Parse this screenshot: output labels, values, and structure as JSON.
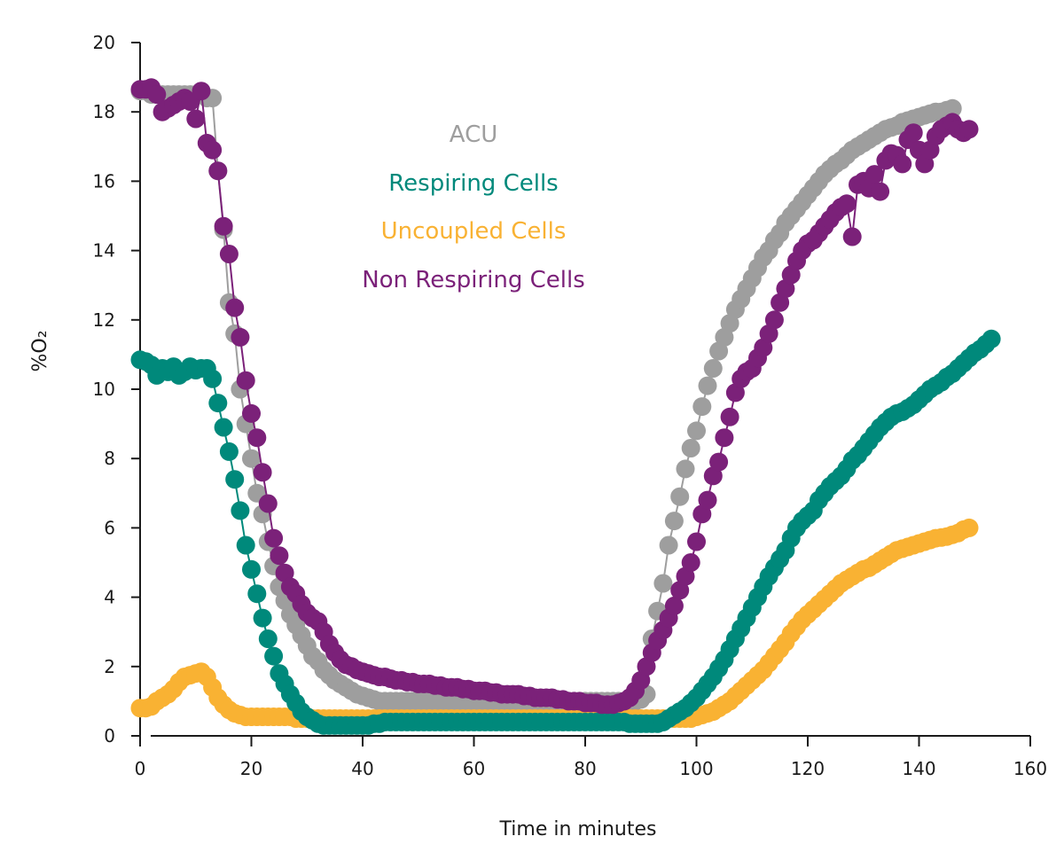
{
  "chart_data": {
    "type": "line",
    "xlabel": "Time in minutes",
    "ylabel": "%O₂",
    "xlim": [
      0,
      160
    ],
    "ylim": [
      0,
      20
    ],
    "xticks": [
      0,
      20,
      40,
      60,
      80,
      100,
      120,
      140,
      160
    ],
    "yticks": [
      0,
      2,
      4,
      6,
      8,
      10,
      12,
      14,
      16,
      18,
      20
    ],
    "grid": false,
    "legend_position": "top-center",
    "x_step": 1,
    "series": [
      {
        "name": "ACU",
        "color": "#9e9e9e",
        "values": [
          18.6,
          18.6,
          18.5,
          18.5,
          18.5,
          18.5,
          18.5,
          18.5,
          18.5,
          18.5,
          18.5,
          18.5,
          18.4,
          18.4,
          16.3,
          14.6,
          12.5,
          11.6,
          10.0,
          9.0,
          8.0,
          7.0,
          6.4,
          5.6,
          4.9,
          4.3,
          3.9,
          3.5,
          3.2,
          2.9,
          2.6,
          2.3,
          2.15,
          1.9,
          1.75,
          1.6,
          1.5,
          1.4,
          1.3,
          1.2,
          1.15,
          1.1,
          1.05,
          1.0,
          1.0,
          1.0,
          1.0,
          1.0,
          1.0,
          1.0,
          1.0,
          1.0,
          1.0,
          1.0,
          1.0,
          1.0,
          1.0,
          1.0,
          1.0,
          1.0,
          1.0,
          1.0,
          1.0,
          1.0,
          1.0,
          1.0,
          1.0,
          1.0,
          1.0,
          1.0,
          1.0,
          1.0,
          1.0,
          1.0,
          1.0,
          1.0,
          1.0,
          1.0,
          1.0,
          1.0,
          1.0,
          1.0,
          1.0,
          1.0,
          1.0,
          1.0,
          1.0,
          1.0,
          1.0,
          1.0,
          1.05,
          1.2,
          2.8,
          3.6,
          4.4,
          5.5,
          6.2,
          6.9,
          7.7,
          8.3,
          8.8,
          9.5,
          10.1,
          10.6,
          11.1,
          11.5,
          11.9,
          12.3,
          12.6,
          12.9,
          13.2,
          13.5,
          13.8,
          14.0,
          14.3,
          14.5,
          14.8,
          15.0,
          15.2,
          15.4,
          15.6,
          15.8,
          16.0,
          16.2,
          16.35,
          16.5,
          16.6,
          16.75,
          16.9,
          17.0,
          17.1,
          17.2,
          17.3,
          17.4,
          17.5,
          17.55,
          17.6,
          17.7,
          17.75,
          17.8,
          17.85,
          17.9,
          17.95,
          18.0,
          18.0,
          18.05,
          18.1
        ]
      },
      {
        "name": "Respiring Cells",
        "color": "#00897b",
        "values": [
          10.85,
          10.8,
          10.7,
          10.4,
          10.6,
          10.5,
          10.65,
          10.4,
          10.5,
          10.65,
          10.55,
          10.6,
          10.6,
          10.3,
          9.6,
          8.9,
          8.2,
          7.4,
          6.5,
          5.5,
          4.8,
          4.1,
          3.4,
          2.8,
          2.3,
          1.8,
          1.5,
          1.2,
          0.95,
          0.7,
          0.55,
          0.45,
          0.35,
          0.3,
          0.3,
          0.3,
          0.3,
          0.3,
          0.3,
          0.3,
          0.3,
          0.3,
          0.35,
          0.35,
          0.4,
          0.4,
          0.4,
          0.4,
          0.4,
          0.4,
          0.4,
          0.4,
          0.4,
          0.4,
          0.4,
          0.4,
          0.4,
          0.4,
          0.4,
          0.4,
          0.4,
          0.4,
          0.4,
          0.4,
          0.4,
          0.4,
          0.4,
          0.4,
          0.4,
          0.4,
          0.4,
          0.4,
          0.4,
          0.4,
          0.4,
          0.4,
          0.4,
          0.4,
          0.4,
          0.4,
          0.4,
          0.4,
          0.4,
          0.4,
          0.4,
          0.4,
          0.4,
          0.4,
          0.35,
          0.35,
          0.35,
          0.35,
          0.35,
          0.35,
          0.4,
          0.5,
          0.6,
          0.7,
          0.8,
          0.95,
          1.1,
          1.3,
          1.5,
          1.7,
          1.95,
          2.2,
          2.5,
          2.8,
          3.1,
          3.4,
          3.7,
          4.0,
          4.3,
          4.6,
          4.85,
          5.1,
          5.35,
          5.7,
          6.0,
          6.2,
          6.35,
          6.5,
          6.8,
          7.0,
          7.2,
          7.35,
          7.5,
          7.7,
          7.95,
          8.1,
          8.3,
          8.5,
          8.7,
          8.9,
          9.05,
          9.2,
          9.3,
          9.35,
          9.45,
          9.55,
          9.7,
          9.85,
          10.0,
          10.1,
          10.2,
          10.35,
          10.45,
          10.6,
          10.75,
          10.9,
          11.05,
          11.15,
          11.3,
          11.45
        ]
      },
      {
        "name": "Uncoupled Cells",
        "color": "#f9b233",
        "values": [
          0.8,
          0.8,
          0.85,
          1.0,
          1.1,
          1.2,
          1.35,
          1.55,
          1.7,
          1.75,
          1.8,
          1.85,
          1.7,
          1.4,
          1.1,
          0.9,
          0.75,
          0.65,
          0.6,
          0.55,
          0.55,
          0.55,
          0.55,
          0.55,
          0.55,
          0.55,
          0.55,
          0.55,
          0.5,
          0.5,
          0.5,
          0.5,
          0.5,
          0.5,
          0.5,
          0.5,
          0.5,
          0.5,
          0.5,
          0.5,
          0.5,
          0.5,
          0.5,
          0.5,
          0.5,
          0.5,
          0.5,
          0.5,
          0.5,
          0.5,
          0.5,
          0.5,
          0.5,
          0.5,
          0.5,
          0.5,
          0.5,
          0.5,
          0.5,
          0.5,
          0.5,
          0.5,
          0.5,
          0.5,
          0.5,
          0.5,
          0.5,
          0.5,
          0.5,
          0.5,
          0.5,
          0.5,
          0.5,
          0.5,
          0.5,
          0.5,
          0.5,
          0.5,
          0.5,
          0.5,
          0.5,
          0.5,
          0.5,
          0.5,
          0.5,
          0.5,
          0.5,
          0.5,
          0.5,
          0.5,
          0.5,
          0.5,
          0.5,
          0.5,
          0.5,
          0.5,
          0.5,
          0.5,
          0.5,
          0.5,
          0.55,
          0.6,
          0.65,
          0.7,
          0.8,
          0.9,
          1.0,
          1.15,
          1.3,
          1.45,
          1.6,
          1.75,
          1.9,
          2.1,
          2.3,
          2.5,
          2.7,
          2.95,
          3.15,
          3.35,
          3.5,
          3.65,
          3.8,
          3.95,
          4.1,
          4.25,
          4.4,
          4.5,
          4.6,
          4.7,
          4.8,
          4.85,
          4.95,
          5.05,
          5.15,
          5.25,
          5.35,
          5.4,
          5.45,
          5.5,
          5.55,
          5.6,
          5.65,
          5.7,
          5.72,
          5.75,
          5.8,
          5.85,
          5.95,
          6.0
        ]
      },
      {
        "name": "Non Respiring Cells",
        "color": "#7b2179",
        "values": [
          18.65,
          18.65,
          18.7,
          18.5,
          18.0,
          18.1,
          18.2,
          18.3,
          18.4,
          18.3,
          17.8,
          18.6,
          17.1,
          16.9,
          16.3,
          14.7,
          13.9,
          12.35,
          11.5,
          10.25,
          9.3,
          8.6,
          7.6,
          6.7,
          5.7,
          5.2,
          4.7,
          4.3,
          4.1,
          3.8,
          3.55,
          3.4,
          3.3,
          3.0,
          2.65,
          2.4,
          2.2,
          2.05,
          2.0,
          1.9,
          1.85,
          1.8,
          1.75,
          1.7,
          1.7,
          1.65,
          1.6,
          1.6,
          1.55,
          1.55,
          1.5,
          1.5,
          1.5,
          1.45,
          1.45,
          1.4,
          1.4,
          1.4,
          1.35,
          1.35,
          1.3,
          1.3,
          1.3,
          1.25,
          1.25,
          1.2,
          1.2,
          1.2,
          1.2,
          1.15,
          1.15,
          1.1,
          1.1,
          1.1,
          1.1,
          1.05,
          1.05,
          1.0,
          1.0,
          1.0,
          0.95,
          0.95,
          0.95,
          0.9,
          0.9,
          0.9,
          0.95,
          1.0,
          1.1,
          1.3,
          1.6,
          2.0,
          2.4,
          2.75,
          3.05,
          3.4,
          3.75,
          4.2,
          4.6,
          5.0,
          5.6,
          6.4,
          6.8,
          7.5,
          7.9,
          8.6,
          9.2,
          9.9,
          10.3,
          10.5,
          10.6,
          10.9,
          11.2,
          11.6,
          12.0,
          12.5,
          12.9,
          13.3,
          13.7,
          14.0,
          14.2,
          14.3,
          14.5,
          14.7,
          14.9,
          15.1,
          15.25,
          15.35,
          14.4,
          15.9,
          16.0,
          15.8,
          16.2,
          15.7,
          16.6,
          16.8,
          16.75,
          16.5,
          17.2,
          17.4,
          16.9,
          16.5,
          16.9,
          17.3,
          17.5,
          17.6,
          17.7,
          17.5,
          17.4,
          17.5
        ]
      }
    ]
  }
}
